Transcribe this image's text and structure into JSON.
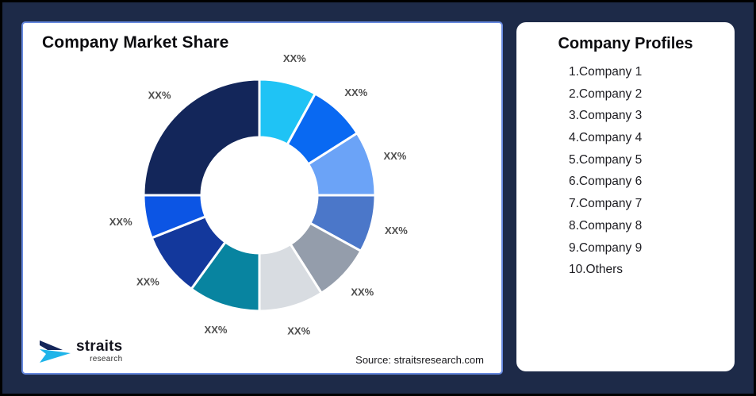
{
  "background_color": "#1d2a48",
  "market_share_card": {
    "title": "Company Market Share",
    "source_text": "Source: straitsresearch.com",
    "logo": {
      "brand": "straits",
      "sub_brand": "research",
      "icon": "straits-arrow-icon",
      "icon_navy": "#14265a",
      "icon_cyan": "#1fb4e9"
    }
  },
  "profiles_card": {
    "title": "Company Profiles",
    "items": [
      "1.Company 1",
      "2.Company 2",
      "3.Company 3",
      "4.Company 4",
      "5.Company 5",
      "6.Company 6",
      "7.Company 7",
      "8.Company 8",
      "9.Company 9",
      "10.Others"
    ]
  },
  "chart_data": {
    "type": "pie",
    "subtype": "donut",
    "title": "Company Market Share",
    "inner_radius_ratio": 0.5,
    "start_angle_deg": 0,
    "direction": "clockwise",
    "legend_position": "none",
    "values_are_placeholders": true,
    "values_estimated_from_arc_angles": true,
    "segments": [
      {
        "label": "XX%",
        "value": 8,
        "color": "#1fc3f5"
      },
      {
        "label": "XX%",
        "value": 8,
        "color": "#0969f2"
      },
      {
        "label": "XX%",
        "value": 9,
        "color": "#6ba3f7"
      },
      {
        "label": "XX%",
        "value": 8,
        "color": "#4b77c9"
      },
      {
        "label": "XX%",
        "value": 8,
        "color": "#949dab"
      },
      {
        "label": "XX%",
        "value": 9,
        "color": "#d8dce1"
      },
      {
        "label": "XX%",
        "value": 10,
        "color": "#0884a0"
      },
      {
        "label": "XX%",
        "value": 9,
        "color": "#13389c"
      },
      {
        "label": "XX%",
        "value": 6,
        "color": "#0c55e4"
      },
      {
        "label": "XX%",
        "value": 25,
        "color": "#13265a"
      }
    ]
  }
}
